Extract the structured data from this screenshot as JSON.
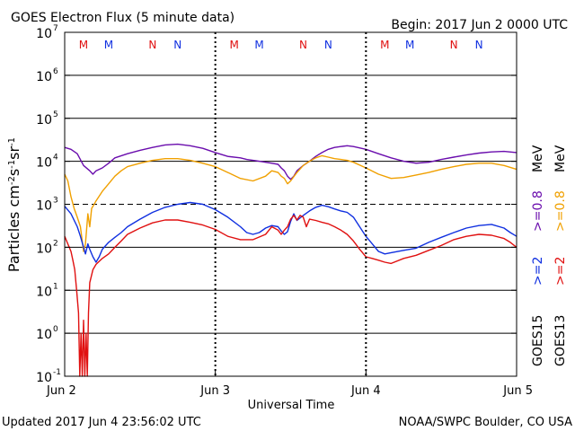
{
  "header": {
    "title": "GOES Electron Flux (5 minute data)",
    "begin": "Begin: 2017 Jun 2 0000 UTC"
  },
  "footer": {
    "updated": "Updated 2017 Jun  4 23:56:02 UTC",
    "credit": "NOAA/SWPC Boulder, CO USA"
  },
  "colors": {
    "purple": "#6a0dad",
    "orange": "#f0a000",
    "blue": "#1030e0",
    "red": "#e01010",
    "m_marker": "#e01010",
    "n_marker": "#1030e0"
  },
  "chart_data": {
    "type": "line",
    "title": "GOES Electron Flux (5 minute data)",
    "xlabel": "Universal Time",
    "ylabel_parts": [
      "Particles cm",
      "-2",
      "s",
      "-1",
      "sr",
      "-1"
    ],
    "yscale": "log",
    "ylim": [
      0.1,
      10000000
    ],
    "y_ticks": [
      {
        "base": "10",
        "exp": "-1",
        "value": 0.1
      },
      {
        "base": "10",
        "exp": "0",
        "value": 1
      },
      {
        "base": "10",
        "exp": "1",
        "value": 10
      },
      {
        "base": "10",
        "exp": "2",
        "value": 100
      },
      {
        "base": "10",
        "exp": "3",
        "value": 1000
      },
      {
        "base": "10",
        "exp": "4",
        "value": 10000
      },
      {
        "base": "10",
        "exp": "5",
        "value": 100000
      },
      {
        "base": "10",
        "exp": "6",
        "value": 1000000
      },
      {
        "base": "10",
        "exp": "7",
        "value": 10000000
      }
    ],
    "threshold_dashed": 1000,
    "xlim_hours": [
      0,
      72
    ],
    "x_ticks": [
      {
        "label": "Jun 2",
        "hour": 0
      },
      {
        "label": "Jun 3",
        "hour": 24
      },
      {
        "label": "Jun 4",
        "hour": 48
      },
      {
        "label": "Jun 5",
        "hour": 72
      }
    ],
    "markers": [
      {
        "label": "M",
        "hour": 3.0,
        "color_key": "m_marker"
      },
      {
        "label": "M",
        "hour": 7.0,
        "color_key": "n_marker"
      },
      {
        "label": "N",
        "hour": 14.0,
        "color_key": "m_marker"
      },
      {
        "label": "N",
        "hour": 18.0,
        "color_key": "n_marker"
      },
      {
        "label": "M",
        "hour": 27.0,
        "color_key": "m_marker"
      },
      {
        "label": "M",
        "hour": 31.0,
        "color_key": "n_marker"
      },
      {
        "label": "N",
        "hour": 38.0,
        "color_key": "m_marker"
      },
      {
        "label": "N",
        "hour": 42.0,
        "color_key": "n_marker"
      },
      {
        "label": "M",
        "hour": 51.0,
        "color_key": "m_marker"
      },
      {
        "label": "M",
        "hour": 55.0,
        "color_key": "n_marker"
      },
      {
        "label": "N",
        "hour": 62.0,
        "color_key": "m_marker"
      },
      {
        "label": "N",
        "hour": 66.0,
        "color_key": "n_marker"
      }
    ],
    "legend_right": [
      {
        "text": "GOES15",
        "color_key": "black",
        "column": 1,
        "pos": "bottom"
      },
      {
        "text": ">=2",
        "color_key": "blue",
        "column": 1,
        "pos": "mid"
      },
      {
        "text": ">=0.8",
        "color_key": "purple",
        "column": 1,
        "pos": "upper"
      },
      {
        "text": "MeV",
        "color_key": "black",
        "column": 1,
        "pos": "top"
      },
      {
        "text": "GOES13",
        "color_key": "black",
        "column": 2,
        "pos": "bottom"
      },
      {
        "text": ">=2",
        "color_key": "red",
        "column": 2,
        "pos": "mid"
      },
      {
        "text": ">=0.8",
        "color_key": "orange",
        "column": 2,
        "pos": "upper"
      },
      {
        "text": "MeV",
        "color_key": "black",
        "column": 2,
        "pos": "top"
      }
    ],
    "series": [
      {
        "name": "GOES15 >=0.8 MeV",
        "color_key": "purple",
        "points": [
          [
            0,
            21000
          ],
          [
            1,
            19000
          ],
          [
            2,
            15000
          ],
          [
            3,
            8000
          ],
          [
            4,
            6000
          ],
          [
            4.5,
            5000
          ],
          [
            5,
            6000
          ],
          [
            6,
            7000
          ],
          [
            7,
            9000
          ],
          [
            8,
            12000
          ],
          [
            10,
            15000
          ],
          [
            12,
            18000
          ],
          [
            14,
            21000
          ],
          [
            16,
            24000
          ],
          [
            18,
            25000
          ],
          [
            20,
            23000
          ],
          [
            22,
            20000
          ],
          [
            24,
            16000
          ],
          [
            26,
            13000
          ],
          [
            28,
            12000
          ],
          [
            29,
            11000
          ],
          [
            30,
            10500
          ],
          [
            31,
            10000
          ],
          [
            32,
            9500
          ],
          [
            33,
            9000
          ],
          [
            34,
            8500
          ],
          [
            34.5,
            7000
          ],
          [
            35,
            6000
          ],
          [
            35.5,
            4500
          ],
          [
            36,
            3800
          ],
          [
            36.5,
            4500
          ],
          [
            37,
            6000
          ],
          [
            38,
            8000
          ],
          [
            39,
            10000
          ],
          [
            40,
            13000
          ],
          [
            41,
            16000
          ],
          [
            42,
            19000
          ],
          [
            43,
            21000
          ],
          [
            44,
            22000
          ],
          [
            45,
            23000
          ],
          [
            46,
            22000
          ],
          [
            48,
            19000
          ],
          [
            50,
            15000
          ],
          [
            52,
            12000
          ],
          [
            54,
            10000
          ],
          [
            56,
            9000
          ],
          [
            58,
            9500
          ],
          [
            60,
            11000
          ],
          [
            62,
            12500
          ],
          [
            64,
            14000
          ],
          [
            66,
            15500
          ],
          [
            68,
            16500
          ],
          [
            70,
            17000
          ],
          [
            72,
            16000
          ]
        ]
      },
      {
        "name": "GOES13 >=0.8 MeV",
        "color_key": "orange",
        "points": [
          [
            0,
            5000
          ],
          [
            0.5,
            3500
          ],
          [
            1,
            1500
          ],
          [
            1.5,
            800
          ],
          [
            2,
            500
          ],
          [
            2.5,
            300
          ],
          [
            3,
            80
          ],
          [
            3.3,
            120
          ],
          [
            3.7,
            600
          ],
          [
            4,
            300
          ],
          [
            4.3,
            800
          ],
          [
            4.7,
            1000
          ],
          [
            5,
            1200
          ],
          [
            6,
            2000
          ],
          [
            7,
            3000
          ],
          [
            8,
            4500
          ],
          [
            9,
            6000
          ],
          [
            10,
            7500
          ],
          [
            12,
            9000
          ],
          [
            14,
            10500
          ],
          [
            16,
            11500
          ],
          [
            18,
            11500
          ],
          [
            20,
            10500
          ],
          [
            22,
            9000
          ],
          [
            24,
            7500
          ],
          [
            26,
            5500
          ],
          [
            28,
            4000
          ],
          [
            30,
            3500
          ],
          [
            32,
            4500
          ],
          [
            33,
            6000
          ],
          [
            34,
            5500
          ],
          [
            34.5,
            4500
          ],
          [
            35,
            4000
          ],
          [
            35.5,
            3000
          ],
          [
            36,
            3500
          ],
          [
            37,
            5500
          ],
          [
            38,
            8000
          ],
          [
            39,
            10000
          ],
          [
            40,
            12000
          ],
          [
            41,
            13500
          ],
          [
            42,
            12500
          ],
          [
            43,
            11500
          ],
          [
            44,
            11000
          ],
          [
            45,
            10500
          ],
          [
            46,
            9500
          ],
          [
            48,
            7000
          ],
          [
            50,
            5000
          ],
          [
            52,
            4000
          ],
          [
            54,
            4200
          ],
          [
            56,
            4800
          ],
          [
            58,
            5500
          ],
          [
            60,
            6500
          ],
          [
            62,
            7500
          ],
          [
            64,
            8500
          ],
          [
            66,
            9000
          ],
          [
            68,
            9000
          ],
          [
            70,
            8000
          ],
          [
            72,
            6500
          ]
        ]
      },
      {
        "name": "GOES15 >=2 MeV",
        "color_key": "blue",
        "points": [
          [
            0,
            900
          ],
          [
            1,
            600
          ],
          [
            2,
            300
          ],
          [
            2.5,
            180
          ],
          [
            3,
            100
          ],
          [
            3.3,
            70
          ],
          [
            3.7,
            120
          ],
          [
            4,
            90
          ],
          [
            4.5,
            60
          ],
          [
            5,
            45
          ],
          [
            5.5,
            60
          ],
          [
            6,
            90
          ],
          [
            7,
            130
          ],
          [
            8,
            170
          ],
          [
            9,
            220
          ],
          [
            10,
            300
          ],
          [
            12,
            450
          ],
          [
            14,
            650
          ],
          [
            16,
            850
          ],
          [
            18,
            1000
          ],
          [
            20,
            1100
          ],
          [
            22,
            1000
          ],
          [
            24,
            750
          ],
          [
            26,
            500
          ],
          [
            28,
            300
          ],
          [
            29,
            220
          ],
          [
            30,
            200
          ],
          [
            31,
            220
          ],
          [
            32,
            280
          ],
          [
            33,
            320
          ],
          [
            34,
            300
          ],
          [
            34.5,
            240
          ],
          [
            35,
            200
          ],
          [
            35.5,
            230
          ],
          [
            36,
            400
          ],
          [
            36.5,
            600
          ],
          [
            37,
            420
          ],
          [
            38,
            550
          ],
          [
            39,
            700
          ],
          [
            40,
            850
          ],
          [
            41,
            950
          ],
          [
            42,
            880
          ],
          [
            43,
            780
          ],
          [
            44,
            700
          ],
          [
            45,
            650
          ],
          [
            46,
            500
          ],
          [
            47,
            300
          ],
          [
            48,
            180
          ],
          [
            49,
            120
          ],
          [
            50,
            80
          ],
          [
            51,
            70
          ],
          [
            52,
            75
          ],
          [
            54,
            85
          ],
          [
            56,
            95
          ],
          [
            58,
            130
          ],
          [
            60,
            170
          ],
          [
            62,
            220
          ],
          [
            64,
            280
          ],
          [
            66,
            320
          ],
          [
            68,
            340
          ],
          [
            70,
            280
          ],
          [
            71,
            220
          ],
          [
            72,
            180
          ]
        ]
      },
      {
        "name": "GOES13 >=2 MeV",
        "color_key": "red",
        "points": [
          [
            0,
            180
          ],
          [
            0.5,
            120
          ],
          [
            1,
            80
          ],
          [
            1.3,
            50
          ],
          [
            1.6,
            30
          ],
          [
            1.9,
            10
          ],
          [
            2.2,
            3
          ],
          [
            2.4,
            0.1
          ],
          [
            2.6,
            1
          ],
          [
            2.8,
            0.1
          ],
          [
            3,
            2
          ],
          [
            3.2,
            0.1
          ],
          [
            3.4,
            1
          ],
          [
            3.6,
            0.1
          ],
          [
            3.8,
            3
          ],
          [
            4,
            15
          ],
          [
            4.5,
            30
          ],
          [
            5,
            40
          ],
          [
            6,
            55
          ],
          [
            7,
            70
          ],
          [
            8,
            100
          ],
          [
            9,
            140
          ],
          [
            10,
            200
          ],
          [
            12,
            280
          ],
          [
            14,
            370
          ],
          [
            16,
            430
          ],
          [
            18,
            430
          ],
          [
            20,
            380
          ],
          [
            22,
            330
          ],
          [
            24,
            260
          ],
          [
            26,
            180
          ],
          [
            28,
            150
          ],
          [
            30,
            150
          ],
          [
            32,
            200
          ],
          [
            33,
            300
          ],
          [
            34,
            250
          ],
          [
            34.5,
            200
          ],
          [
            35,
            250
          ],
          [
            35.5,
            300
          ],
          [
            36,
            450
          ],
          [
            36.5,
            550
          ],
          [
            37,
            430
          ],
          [
            37.5,
            550
          ],
          [
            38,
            500
          ],
          [
            38.5,
            300
          ],
          [
            39,
            450
          ],
          [
            40,
            420
          ],
          [
            41,
            380
          ],
          [
            42,
            350
          ],
          [
            43,
            300
          ],
          [
            44,
            250
          ],
          [
            45,
            200
          ],
          [
            46,
            140
          ],
          [
            47,
            90
          ],
          [
            48,
            60
          ],
          [
            49,
            55
          ],
          [
            50,
            50
          ],
          [
            51,
            45
          ],
          [
            52,
            42
          ],
          [
            54,
            55
          ],
          [
            56,
            65
          ],
          [
            58,
            85
          ],
          [
            60,
            110
          ],
          [
            62,
            150
          ],
          [
            64,
            180
          ],
          [
            66,
            200
          ],
          [
            68,
            190
          ],
          [
            70,
            160
          ],
          [
            71,
            130
          ],
          [
            72,
            100
          ]
        ]
      }
    ]
  }
}
